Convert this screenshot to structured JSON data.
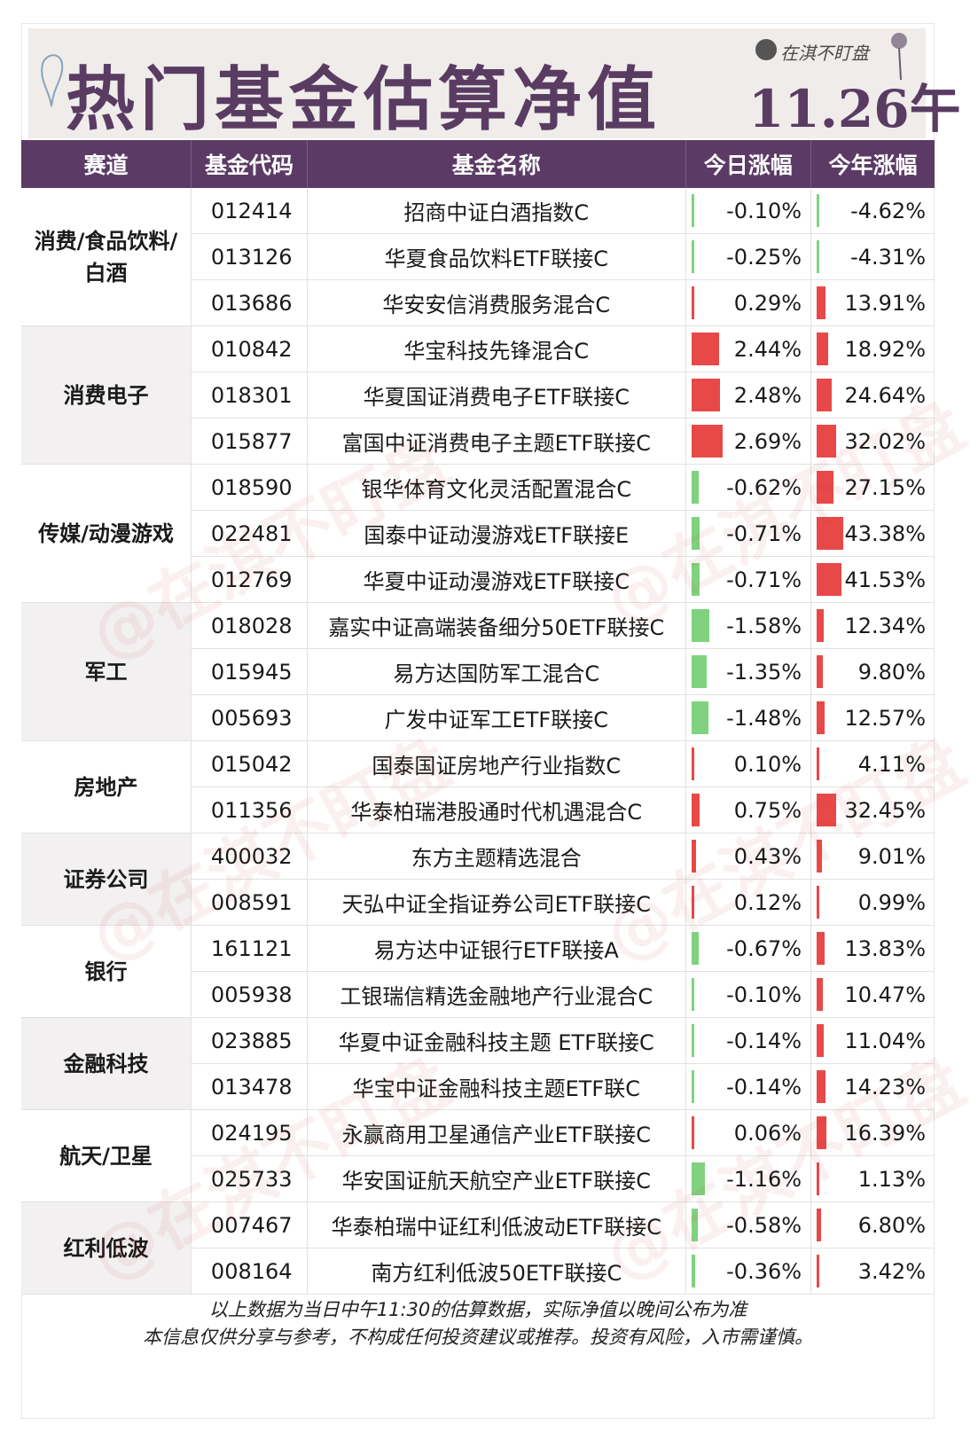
{
  "banner": {
    "title": "热门基金估算净值",
    "date": "11.26午",
    "brand": "在淇不盯盘"
  },
  "table": {
    "headers": [
      "赛道",
      "基金代码",
      "基金名称",
      "今日涨幅",
      "今年涨幅"
    ],
    "groups": [
      {
        "sector": "消费/食品饮料/白酒",
        "rows": [
          {
            "code": "012414",
            "name": "招商中证白酒指数C",
            "today": "-0.10%",
            "ytd": "-4.62%",
            "today_v": -0.1,
            "ytd_v": -4.62
          },
          {
            "code": "013126",
            "name": "华夏食品饮料ETF联接C",
            "today": "-0.25%",
            "ytd": "-4.31%",
            "today_v": -0.25,
            "ytd_v": -4.31
          },
          {
            "code": "013686",
            "name": "华安安信消费服务混合C",
            "today": "0.29%",
            "ytd": "13.91%",
            "today_v": 0.29,
            "ytd_v": 13.91
          }
        ]
      },
      {
        "sector": "消费电子",
        "rows": [
          {
            "code": "010842",
            "name": "华宝科技先锋混合C",
            "today": "2.44%",
            "ytd": "18.92%",
            "today_v": 2.44,
            "ytd_v": 18.92
          },
          {
            "code": "018301",
            "name": "华夏国证消费电子ETF联接C",
            "today": "2.48%",
            "ytd": "24.64%",
            "today_v": 2.48,
            "ytd_v": 24.64
          },
          {
            "code": "015877",
            "name": "富国中证消费电子主题ETF联接C",
            "today": "2.69%",
            "ytd": "32.02%",
            "today_v": 2.69,
            "ytd_v": 32.02
          }
        ]
      },
      {
        "sector": "传媒/动漫游戏",
        "rows": [
          {
            "code": "018590",
            "name": "银华体育文化灵活配置混合C",
            "today": "-0.62%",
            "ytd": "27.15%",
            "today_v": -0.62,
            "ytd_v": 27.15
          },
          {
            "code": "022481",
            "name": "国泰中证动漫游戏ETF联接E",
            "today": "-0.71%",
            "ytd": "43.38%",
            "today_v": -0.71,
            "ytd_v": 43.38
          },
          {
            "code": "012769",
            "name": "华夏中证动漫游戏ETF联接C",
            "today": "-0.71%",
            "ytd": "41.53%",
            "today_v": -0.71,
            "ytd_v": 41.53
          }
        ]
      },
      {
        "sector": "军工",
        "rows": [
          {
            "code": "018028",
            "name": "嘉实中证高端装备细分50ETF联接C",
            "today": "-1.58%",
            "ytd": "12.34%",
            "today_v": -1.58,
            "ytd_v": 12.34
          },
          {
            "code": "015945",
            "name": "易方达国防军工混合C",
            "today": "-1.35%",
            "ytd": "9.80%",
            "today_v": -1.35,
            "ytd_v": 9.8
          },
          {
            "code": "005693",
            "name": "广发中证军工ETF联接C",
            "today": "-1.48%",
            "ytd": "12.57%",
            "today_v": -1.48,
            "ytd_v": 12.57
          }
        ]
      },
      {
        "sector": "房地产",
        "rows": [
          {
            "code": "015042",
            "name": "国泰国证房地产行业指数C",
            "today": "0.10%",
            "ytd": "4.11%",
            "today_v": 0.1,
            "ytd_v": 4.11
          },
          {
            "code": "011356",
            "name": "华泰柏瑞港股通时代机遇混合C",
            "today": "0.75%",
            "ytd": "32.45%",
            "today_v": 0.75,
            "ytd_v": 32.45
          }
        ]
      },
      {
        "sector": "证券公司",
        "rows": [
          {
            "code": "400032",
            "name": "东方主题精选混合",
            "today": "0.43%",
            "ytd": "9.01%",
            "today_v": 0.43,
            "ytd_v": 9.01
          },
          {
            "code": "008591",
            "name": "天弘中证全指证券公司ETF联接C",
            "today": "0.12%",
            "ytd": "0.99%",
            "today_v": 0.12,
            "ytd_v": 0.99
          }
        ]
      },
      {
        "sector": "银行",
        "rows": [
          {
            "code": "161121",
            "name": "易方达中证银行ETF联接A",
            "today": "-0.67%",
            "ytd": "13.83%",
            "today_v": -0.67,
            "ytd_v": 13.83
          },
          {
            "code": "005938",
            "name": "工银瑞信精选金融地产行业混合C",
            "today": "-0.10%",
            "ytd": "10.47%",
            "today_v": -0.1,
            "ytd_v": 10.47
          }
        ]
      },
      {
        "sector": "金融科技",
        "rows": [
          {
            "code": "023885",
            "name": "华夏中证金融科技主题 ETF联接C",
            "today": "-0.14%",
            "ytd": "11.04%",
            "today_v": -0.14,
            "ytd_v": 11.04
          },
          {
            "code": "013478",
            "name": "华宝中证金融科技主题ETF联C",
            "today": "-0.14%",
            "ytd": "14.23%",
            "today_v": -0.14,
            "ytd_v": 14.23
          }
        ]
      },
      {
        "sector": "航天/卫星",
        "rows": [
          {
            "code": "024195",
            "name": "永赢商用卫星通信产业ETF联接C",
            "today": "0.06%",
            "ytd": "16.39%",
            "today_v": 0.06,
            "ytd_v": 16.39
          },
          {
            "code": "025733",
            "name": "华安国证航天航空产业ETF联接C",
            "today": "-1.16%",
            "ytd": "1.13%",
            "today_v": -1.16,
            "ytd_v": 1.13
          }
        ]
      },
      {
        "sector": "红利低波",
        "rows": [
          {
            "code": "007467",
            "name": "华泰柏瑞中证红利低波动ETF联接C",
            "today": "-0.58%",
            "ytd": "6.80%",
            "today_v": -0.58,
            "ytd_v": 6.8
          },
          {
            "code": "008164",
            "name": "南方红利低波50ETF联接C",
            "today": "-0.36%",
            "ytd": "3.42%",
            "today_v": -0.36,
            "ytd_v": 3.42
          }
        ]
      }
    ]
  },
  "footer": {
    "line1": "以上数据为当日中午11:30的估算数据，实际净值以晚间公布为准",
    "line2": "本信息仅供分享与参考，不构成任何投资建议或推荐。投资有风险，入市需谨慎。"
  },
  "watermark": "@在淇不盯盘",
  "colors": {
    "header_bg": "#5b3b65",
    "title": "#5a3c63",
    "up": "#e84848",
    "down": "#7fd37f"
  }
}
